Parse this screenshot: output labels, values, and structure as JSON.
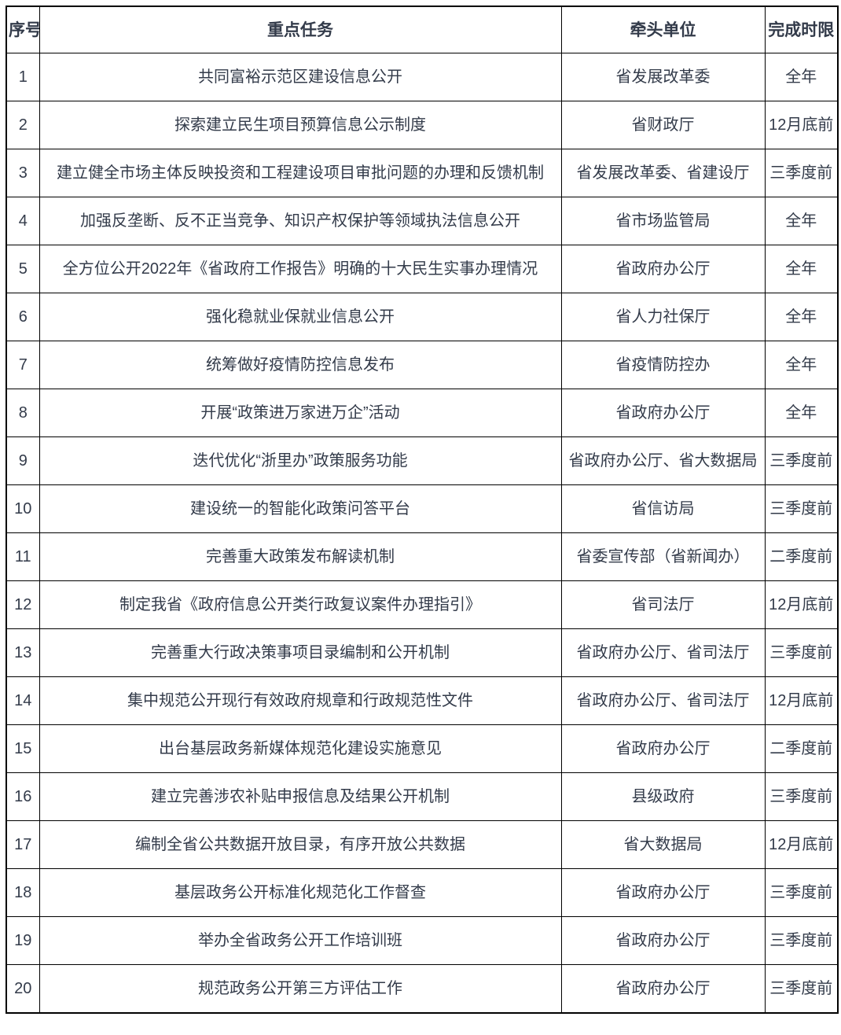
{
  "colors": {
    "background": "#ffffff",
    "border": "#000000",
    "text": "#333b4a"
  },
  "table": {
    "columns": [
      {
        "id": "index",
        "label": "序号"
      },
      {
        "id": "task",
        "label": "重点任务"
      },
      {
        "id": "unit",
        "label": "牵头单位"
      },
      {
        "id": "deadline",
        "label": "完成时限"
      }
    ],
    "rows": [
      {
        "index": "1",
        "task": "共同富裕示范区建设信息公开",
        "unit": "省发展改革委",
        "deadline": "全年"
      },
      {
        "index": "2",
        "task": "探索建立民生项目预算信息公示制度",
        "unit": "省财政厅",
        "deadline": "12月底前"
      },
      {
        "index": "3",
        "task": "建立健全市场主体反映投资和工程建设项目审批问题的办理和反馈机制",
        "unit": "省发展改革委、省建设厅",
        "deadline": "三季度前"
      },
      {
        "index": "4",
        "task": "加强反垄断、反不正当竞争、知识产权保护等领域执法信息公开",
        "unit": "省市场监管局",
        "deadline": "全年"
      },
      {
        "index": "5",
        "task": "全方位公开2022年《省政府工作报告》明确的十大民生实事办理情况",
        "unit": "省政府办公厅",
        "deadline": "全年"
      },
      {
        "index": "6",
        "task": "强化稳就业保就业信息公开",
        "unit": "省人力社保厅",
        "deadline": "全年"
      },
      {
        "index": "7",
        "task": "统筹做好疫情防控信息发布",
        "unit": "省疫情防控办",
        "deadline": "全年"
      },
      {
        "index": "8",
        "task": "开展“政策进万家进万企”活动",
        "unit": "省政府办公厅",
        "deadline": "全年"
      },
      {
        "index": "9",
        "task": "迭代优化“浙里办”政策服务功能",
        "unit": "省政府办公厅、省大数据局",
        "deadline": "三季度前"
      },
      {
        "index": "10",
        "task": "建设统一的智能化政策问答平台",
        "unit": "省信访局",
        "deadline": "三季度前"
      },
      {
        "index": "11",
        "task": "完善重大政策发布解读机制",
        "unit": "省委宣传部（省新闻办）",
        "deadline": "二季度前"
      },
      {
        "index": "12",
        "task": "制定我省《政府信息公开类行政复议案件办理指引》",
        "unit": "省司法厅",
        "deadline": "12月底前"
      },
      {
        "index": "13",
        "task": "完善重大行政决策事项目录编制和公开机制",
        "unit": "省政府办公厅、省司法厅",
        "deadline": "三季度前"
      },
      {
        "index": "14",
        "task": "集中规范公开现行有效政府规章和行政规范性文件",
        "unit": "省政府办公厅、省司法厅",
        "deadline": "12月底前"
      },
      {
        "index": "15",
        "task": "出台基层政务新媒体规范化建设实施意见",
        "unit": "省政府办公厅",
        "deadline": "二季度前"
      },
      {
        "index": "16",
        "task": "建立完善涉农补贴申报信息及结果公开机制",
        "unit": "县级政府",
        "deadline": "三季度前"
      },
      {
        "index": "17",
        "task": "编制全省公共数据开放目录，有序开放公共数据",
        "unit": "省大数据局",
        "deadline": "12月底前"
      },
      {
        "index": "18",
        "task": "基层政务公开标准化规范化工作督查",
        "unit": "省政府办公厅",
        "deadline": "三季度前"
      },
      {
        "index": "19",
        "task": "举办全省政务公开工作培训班",
        "unit": "省政府办公厅",
        "deadline": "三季度前"
      },
      {
        "index": "20",
        "task": "规范政务公开第三方评估工作",
        "unit": "省政府办公厅",
        "deadline": "三季度前"
      }
    ]
  }
}
